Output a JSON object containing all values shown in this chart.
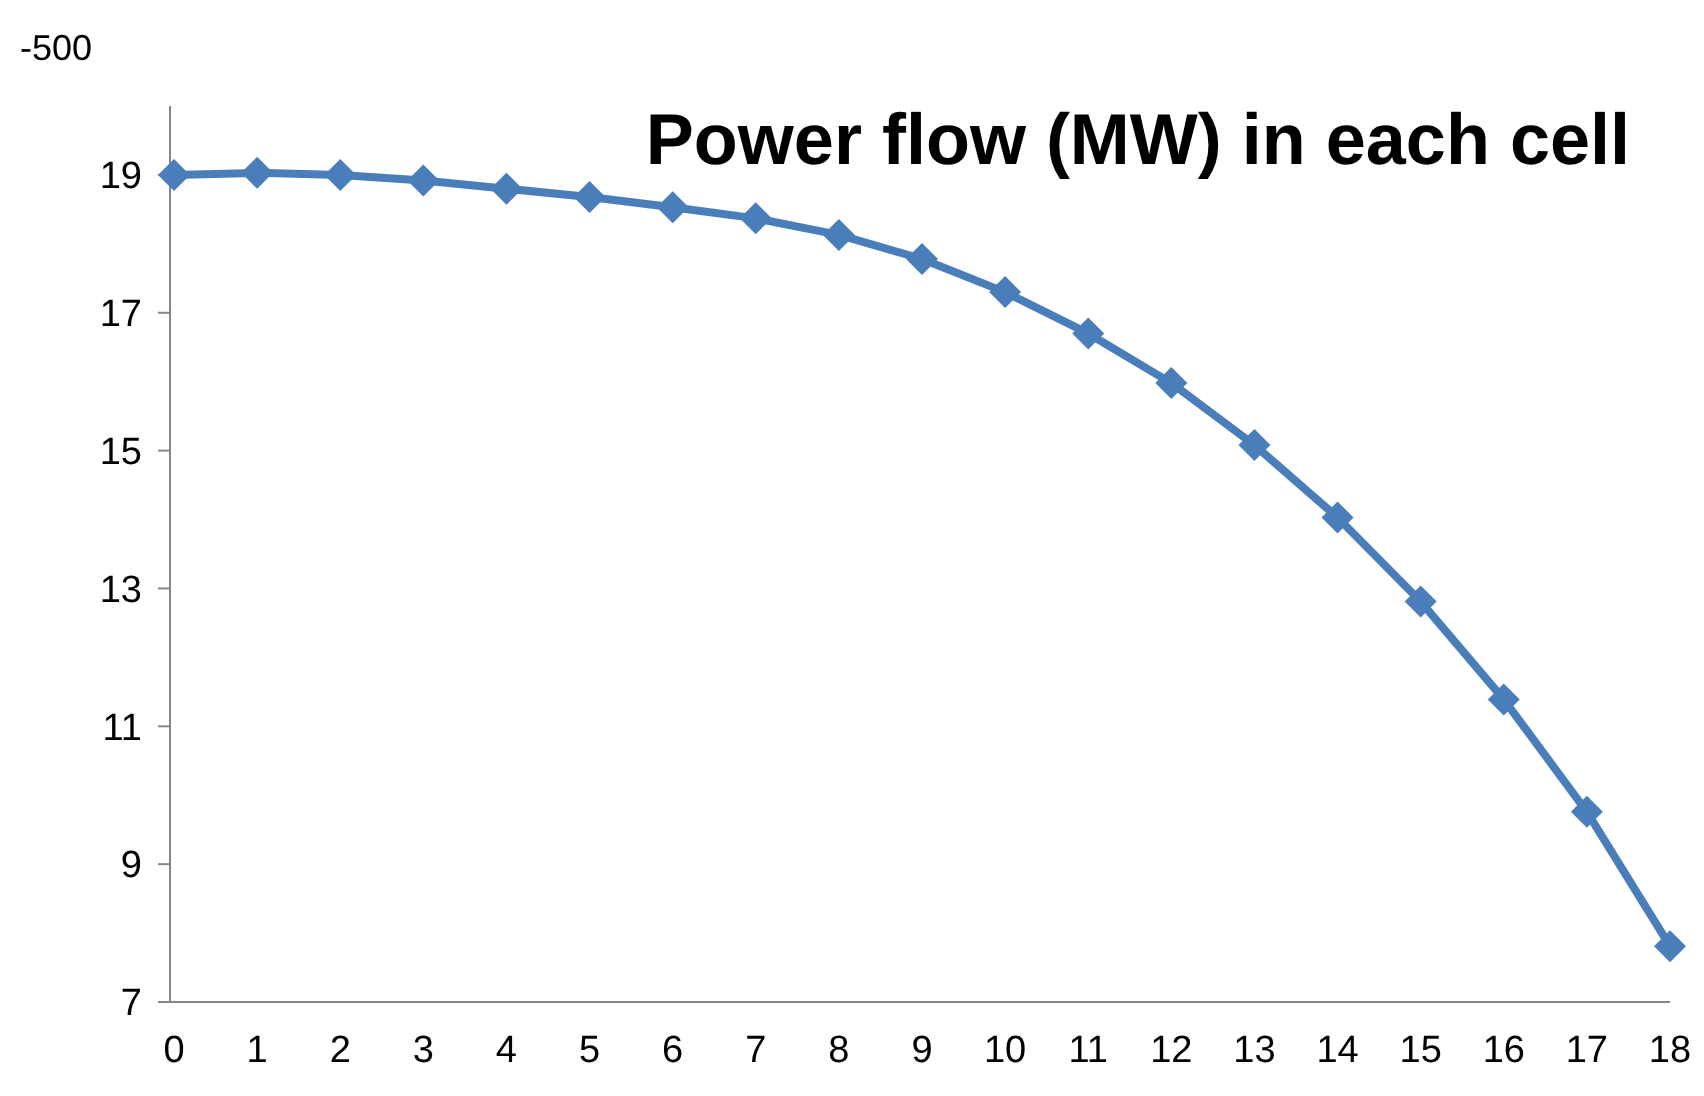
{
  "chart_data": {
    "type": "line",
    "title": "Power flow (MW) in each cell",
    "x": [
      0,
      1,
      2,
      3,
      4,
      5,
      6,
      7,
      8,
      9,
      10,
      11,
      12,
      13,
      14,
      15,
      16,
      17,
      18
    ],
    "series": [
      {
        "color": "#4a7ebb",
        "values": [
          19.0,
          19.03,
          19.0,
          18.92,
          18.8,
          18.68,
          18.53,
          18.37,
          18.13,
          17.78,
          17.3,
          16.7,
          15.98,
          15.08,
          14.03,
          12.81,
          11.39,
          9.76,
          7.81
        ]
      }
    ],
    "xlim": [
      0,
      18
    ],
    "xticks": [
      0,
      1,
      2,
      3,
      4,
      5,
      6,
      7,
      8,
      9,
      10,
      11,
      12,
      13,
      14,
      15,
      16,
      17,
      18
    ],
    "ylim": [
      7,
      20
    ],
    "yticks": [
      7,
      9,
      11,
      13,
      15,
      17,
      19
    ],
    "marker": "diamond",
    "line_style": "solid",
    "annotations": [
      "-500"
    ]
  }
}
